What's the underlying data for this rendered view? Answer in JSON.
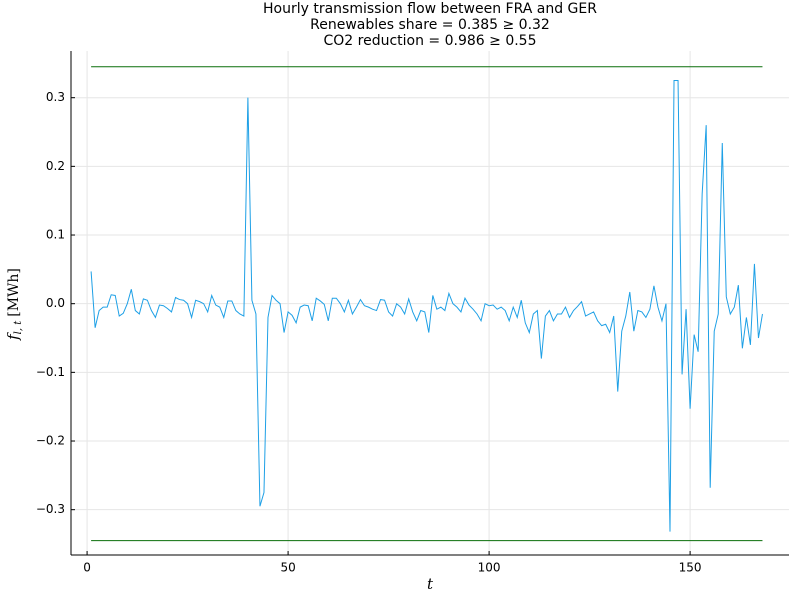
{
  "chart_data": {
    "type": "line",
    "title": [
      "Hourly transmission flow between FRA and GER",
      "Renewables share = 0.385 ≥ 0.32",
      "CO2 reduction = 0.986 ≥ 0.55"
    ],
    "xlabel": "t",
    "ylabel": {
      "symbol": "f",
      "subscript": "l, t",
      "unit": "[MWh]"
    },
    "xlim": [
      -4,
      174.6
    ],
    "ylim": [
      -0.366,
      0.368
    ],
    "xticks": [
      0,
      50,
      100,
      150
    ],
    "yticks": [
      -0.3,
      -0.2,
      -0.1,
      0.0,
      0.1,
      0.2,
      0.3
    ],
    "grid": true,
    "series": [
      {
        "color": "#1ea0e6",
        "x": [
          1,
          2,
          3,
          4,
          5,
          6,
          7,
          8,
          9,
          10,
          11,
          12,
          13,
          14,
          15,
          16,
          17,
          18,
          19,
          20,
          21,
          22,
          23,
          24,
          25,
          26,
          27,
          28,
          29,
          30,
          31,
          32,
          33,
          34,
          35,
          36,
          37,
          38,
          39,
          40,
          41,
          42,
          43,
          44,
          45,
          46,
          47,
          48,
          49,
          50,
          51,
          52,
          53,
          54,
          55,
          56,
          57,
          58,
          59,
          60,
          61,
          62,
          63,
          64,
          65,
          66,
          67,
          68,
          69,
          70,
          71,
          72,
          73,
          74,
          75,
          76,
          77,
          78,
          79,
          80,
          81,
          82,
          83,
          84,
          85,
          86,
          87,
          88,
          89,
          90,
          91,
          92,
          93,
          94,
          95,
          96,
          97,
          98,
          99,
          100,
          101,
          102,
          103,
          104,
          105,
          106,
          107,
          108,
          109,
          110,
          111,
          112,
          113,
          114,
          115,
          116,
          117,
          118,
          119,
          120,
          121,
          122,
          123,
          124,
          125,
          126,
          127,
          128,
          129,
          130,
          131,
          132,
          133,
          134,
          135,
          136,
          137,
          138,
          139,
          140,
          141,
          142,
          143,
          144,
          145,
          146,
          147,
          148,
          149,
          150,
          151,
          152,
          153,
          154,
          155,
          156,
          157,
          158,
          159,
          160,
          161,
          162,
          163,
          164,
          165,
          166,
          167,
          168
        ],
        "values": [
          0.047,
          -0.035,
          -0.01,
          -0.005,
          -0.005,
          0.013,
          0.012,
          -0.018,
          -0.014,
          0.0,
          0.021,
          -0.01,
          -0.015,
          0.007,
          0.005,
          -0.01,
          -0.02,
          -0.002,
          -0.003,
          -0.007,
          -0.012,
          0.009,
          0.006,
          0.005,
          0.0,
          -0.02,
          0.005,
          0.003,
          0.0,
          -0.012,
          0.012,
          -0.002,
          -0.005,
          -0.02,
          0.004,
          0.004,
          -0.01,
          -0.015,
          -0.018,
          0.3,
          0.005,
          -0.015,
          -0.295,
          -0.275,
          -0.02,
          0.012,
          0.005,
          0.0,
          -0.042,
          -0.012,
          -0.017,
          -0.028,
          -0.005,
          -0.002,
          -0.003,
          -0.025,
          0.008,
          0.004,
          -0.001,
          -0.025,
          0.008,
          0.008,
          0.0,
          -0.012,
          0.005,
          -0.015,
          -0.005,
          0.006,
          -0.003,
          -0.005,
          -0.008,
          -0.01,
          0.006,
          0.005,
          -0.012,
          -0.018,
          0.0,
          -0.005,
          -0.015,
          0.007,
          -0.012,
          -0.025,
          -0.01,
          -0.012,
          -0.042,
          0.012,
          -0.008,
          -0.005,
          -0.01,
          0.015,
          0.0,
          -0.005,
          -0.012,
          0.008,
          -0.002,
          -0.008,
          -0.015,
          -0.025,
          0.0,
          -0.003,
          -0.002,
          -0.008,
          -0.005,
          -0.01,
          -0.025,
          -0.005,
          -0.02,
          0.005,
          -0.028,
          -0.042,
          -0.015,
          -0.01,
          -0.08,
          -0.018,
          -0.01,
          -0.025,
          -0.015,
          -0.015,
          -0.005,
          -0.02,
          -0.01,
          -0.004,
          0.003,
          -0.018,
          -0.015,
          -0.012,
          -0.025,
          -0.032,
          -0.03,
          -0.042,
          -0.018,
          -0.128,
          -0.04,
          -0.018,
          0.017,
          -0.04,
          -0.01,
          -0.012,
          -0.02,
          -0.008,
          0.026,
          -0.005,
          -0.025,
          0.0,
          -0.332,
          0.325,
          0.325,
          -0.103,
          -0.008,
          -0.153,
          -0.045,
          -0.07,
          0.16,
          0.26,
          -0.268,
          -0.04,
          -0.015,
          0.234,
          0.01,
          -0.015,
          -0.005,
          0.027,
          -0.065,
          -0.02,
          -0.06,
          0.058,
          -0.05,
          -0.015
        ]
      },
      {
        "color": "#0a6e0a",
        "x": [
          1,
          168
        ],
        "values": [
          0.345,
          0.345
        ]
      },
      {
        "color": "#0a6e0a",
        "x": [
          1,
          168
        ],
        "values": [
          -0.345,
          -0.345
        ]
      }
    ]
  }
}
